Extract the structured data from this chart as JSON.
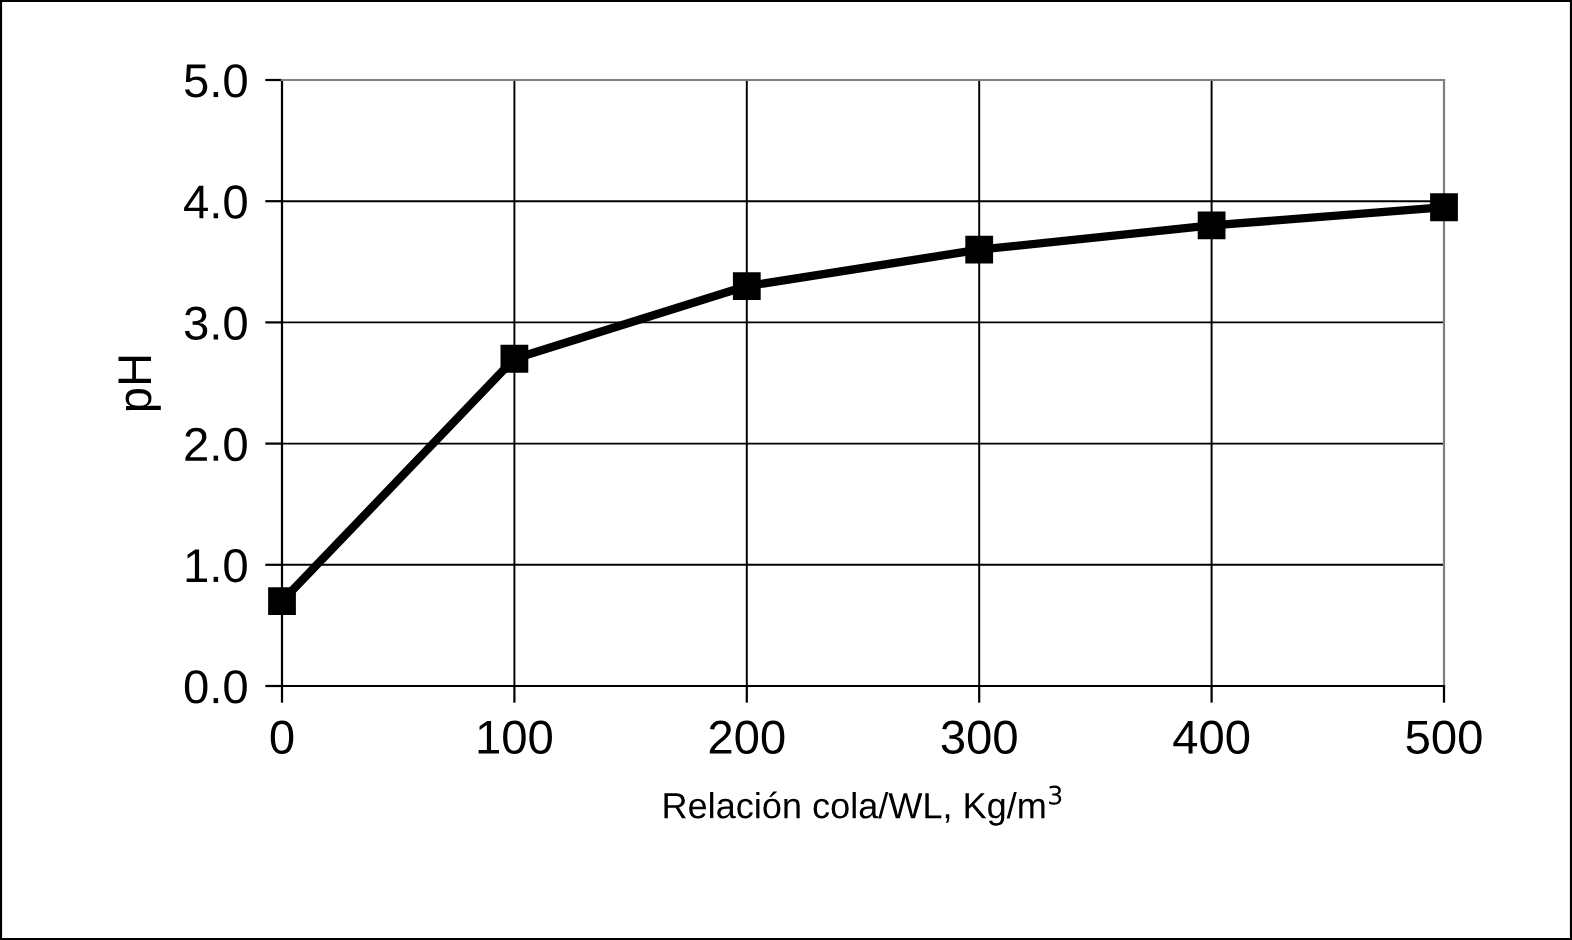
{
  "chart_data": {
    "type": "line",
    "xlabel": "Relación cola/WL, Kg/m$^{3}$",
    "ylabel": "pH",
    "x": [
      0,
      100,
      200,
      300,
      400,
      500
    ],
    "series": [
      {
        "color": "#000000",
        "values": [
          0.7,
          2.7,
          3.3,
          3.6,
          3.8,
          3.95
        ]
      }
    ],
    "xlim": [
      0,
      500
    ],
    "xticks": [
      0,
      100,
      200,
      300,
      400,
      500
    ],
    "ylim": [
      0,
      5
    ],
    "yticks": [
      {
        "value": 0,
        "label": "0.0"
      },
      {
        "value": 1,
        "label": "1.0"
      },
      {
        "value": 2,
        "label": "2.0"
      },
      {
        "value": 3,
        "label": "3.0"
      },
      {
        "value": 4,
        "label": "4.0"
      },
      {
        "value": 5,
        "label": "5.0"
      }
    ],
    "grid": true,
    "marker": "square",
    "line_style": "solid"
  }
}
